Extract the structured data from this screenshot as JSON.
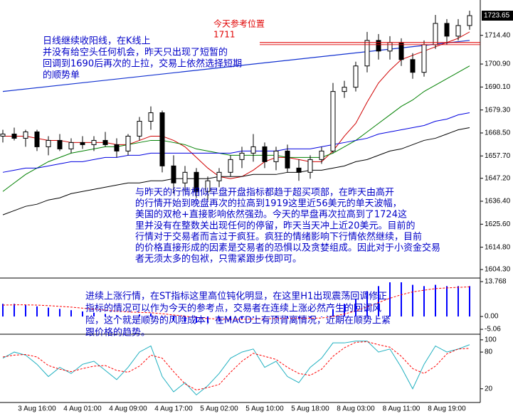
{
  "chart_data": [
    {
      "type": "candlestick",
      "categories": [
        null,
        null,
        null,
        "3 Aug 16:00",
        null,
        null,
        null,
        "4 Aug 01:00",
        null,
        null,
        null,
        "4 Aug 09:00",
        null,
        null,
        null,
        "4 Aug 17:00",
        null,
        null,
        null,
        "5 Aug 02:00",
        null,
        null,
        null,
        "5 Aug 10:00",
        null,
        null,
        null,
        "5 Aug 18:00",
        null,
        null,
        null,
        "8 Aug 03:00",
        null,
        null,
        null,
        "8 Aug 11:00",
        null,
        null,
        null,
        "8 Aug 19:00",
        null,
        null
      ],
      "open": [
        1667,
        1668,
        1666,
        1669,
        1662,
        1665,
        1661,
        1664,
        1663,
        1665,
        1663,
        1660,
        1667,
        1674,
        1678,
        1653,
        1645,
        1650,
        1641,
        1646,
        1650,
        1656,
        1659,
        1662,
        1655,
        1660,
        1652,
        1650,
        1656,
        1660,
        1688,
        1690,
        1700,
        1712,
        1707,
        1711,
        1703,
        1697,
        1710,
        1720,
        1714,
        1719
      ],
      "high": [
        1670,
        1671,
        1670,
        1670,
        1667,
        1668,
        1666,
        1667,
        1667,
        1669,
        1666,
        1668,
        1676,
        1681,
        1679,
        1658,
        1653,
        1652,
        1648,
        1652,
        1658,
        1662,
        1668,
        1664,
        1662,
        1663,
        1656,
        1658,
        1662,
        1692,
        1693,
        1702,
        1716,
        1715,
        1714,
        1713,
        1706,
        1712,
        1724,
        1722,
        1722,
        1726
      ],
      "low": [
        1664,
        1665,
        1662,
        1660,
        1658,
        1660,
        1659,
        1661,
        1660,
        1662,
        1657,
        1658,
        1665,
        1670,
        1650,
        1640,
        1641,
        1638,
        1637,
        1643,
        1648,
        1652,
        1655,
        1652,
        1651,
        1650,
        1646,
        1647,
        1654,
        1659,
        1685,
        1688,
        1697,
        1703,
        1703,
        1700,
        1694,
        1695,
        1708,
        1710,
        1712,
        1717
      ],
      "close": [
        1668,
        1666,
        1669,
        1662,
        1665,
        1661,
        1664,
        1663,
        1665,
        1663,
        1660,
        1667,
        1674,
        1678,
        1653,
        1645,
        1650,
        1641,
        1646,
        1650,
        1656,
        1659,
        1662,
        1655,
        1660,
        1652,
        1650,
        1656,
        1660,
        1688,
        1690,
        1700,
        1712,
        1707,
        1711,
        1703,
        1697,
        1710,
        1720,
        1714,
        1719,
        1723.65
      ],
      "series": [
        {
          "color": "#d00000",
          "values": [
            1667,
            1667,
            1667,
            1666,
            1665,
            1665,
            1664,
            1664,
            1664,
            1664,
            1663,
            1663,
            1665,
            1667,
            1667,
            1665,
            1662,
            1657,
            1652,
            1648,
            1647,
            1648,
            1651,
            1655,
            1657,
            1657,
            1656,
            1655,
            1655,
            1660,
            1667,
            1673,
            1683,
            1692,
            1698,
            1703,
            1705,
            1707,
            1709,
            1711,
            1713,
            1716
          ]
        },
        {
          "color": "#008000",
          "values": [
            1641,
            1645,
            1649,
            1652,
            1655,
            1657,
            1659,
            1660,
            1661,
            1662,
            1662,
            1663,
            1664,
            1665,
            1665,
            1664,
            1663,
            1661,
            1660,
            1659,
            1658,
            1658,
            1658,
            1658,
            1658,
            1657,
            1657,
            1657,
            1657,
            1659,
            1662,
            1665,
            1669,
            1673,
            1677,
            1681,
            1684,
            1688,
            1691,
            1694,
            1697,
            1700
          ]
        },
        {
          "color": "#0000e0",
          "values": [
            1650,
            1651,
            1652,
            1652,
            1653,
            1654,
            1655,
            1655,
            1656,
            1657,
            1657,
            1658,
            1658,
            1659,
            1659,
            1659,
            1659,
            1659,
            1659,
            1659,
            1659,
            1660,
            1660,
            1660,
            1660,
            1661,
            1661,
            1661,
            1662,
            1663,
            1664,
            1665,
            1666,
            1668,
            1669,
            1670,
            1671,
            1672,
            1674,
            1675,
            1677,
            1678
          ]
        },
        {
          "color": "#000000",
          "values": [
            1630,
            1632,
            1634,
            1635,
            1637,
            1638,
            1640,
            1641,
            1642,
            1643,
            1644,
            1645,
            1645,
            1646,
            1646,
            1647,
            1647,
            1647,
            1647,
            1648,
            1648,
            1648,
            1649,
            1649,
            1649,
            1650,
            1650,
            1651,
            1651,
            1652,
            1653,
            1655,
            1656,
            1658,
            1660,
            1661,
            1663,
            1665,
            1666,
            1668,
            1670,
            1671
          ]
        }
      ],
      "trendline": {
        "color": "#1030d0",
        "values": [
          1688,
          1712
        ]
      },
      "reference": {
        "label": "今天参考位置",
        "value": 1711,
        "color": "#e00000"
      },
      "current_price": {
        "value": 1723.65,
        "label": "1723.65"
      },
      "ylim": [
        1600.3,
        1731
      ],
      "yticks": [
        {
          "value": 1714.4,
          "label": "1714.40"
        },
        {
          "value": 1700.9,
          "label": "1700.90"
        },
        {
          "value": 1690.1,
          "label": "1690.10"
        },
        {
          "value": 1679.3,
          "label": "1679.30"
        },
        {
          "value": 1668.5,
          "label": "1668.50"
        },
        {
          "value": 1657.7,
          "label": "1657.70"
        },
        {
          "value": 1647.2,
          "label": "1647.20"
        },
        {
          "value": 1636.4,
          "label": "1636.40"
        },
        {
          "value": 1625.6,
          "label": "1625.60"
        },
        {
          "value": 1614.8,
          "label": "1614.80"
        },
        {
          "value": 1604.3,
          "label": "1604.30"
        }
      ],
      "annotations": [
        [
          "日线继续收阳线，在K线上",
          "并没有给空头任何机会，昨天只出现了短暂的",
          "回调到1690后再次的上拉，交易上依然选择短期",
          "的顺势单"
        ],
        [
          "与昨天的行情相似早盘开盘指标都趋于超买项部，在昨天由高开",
          "的行情开始到晚盘再次的拉高到1919这里近56美元的单天波幅，",
          "美国的双枪+直接影响依然强劲。今天的早盘再次拉高到了1724这",
          "里并没有在整数关出现任何的停留，昨天当天冲上近20美元。目前的",
          "行情对于交易者而言过于疯狂。疯狂的情绪影响下行情依然继续，目前",
          "的价格直接形成的因素是交易者的恐惧以及贪婪组成。因此对于小资金交易",
          "者无须太多的包袱，只需紧跟步伐即可。"
        ]
      ]
    },
    {
      "type": "macd",
      "series": [
        {
          "type": "bar",
          "color": "#0000ff",
          "values": [
            5,
            5,
            4.5,
            4,
            3.5,
            3,
            2.5,
            2,
            1.5,
            1,
            0.5,
            0.3,
            0.8,
            1.2,
            -0.5,
            -1.5,
            -2,
            -2.5,
            -2.5,
            -2,
            -1.5,
            -1,
            -0.5,
            -0.3,
            -0.3,
            -0.5,
            -0.8,
            -0.6,
            -0.2,
            3,
            5,
            7,
            10,
            12,
            13.5,
            13.5,
            12.5,
            12,
            12.5,
            12,
            12,
            12
          ]
        },
        {
          "type": "line",
          "color": "#ff0000",
          "values": [
            4.5,
            4.6,
            4.6,
            4.5,
            4.3,
            4,
            3.7,
            3.3,
            2.9,
            2.5,
            2.1,
            1.8,
            1.6,
            1.5,
            1.1,
            0.6,
            0.1,
            -0.4,
            -0.8,
            -1,
            -1.1,
            -1.1,
            -1,
            -0.9,
            -0.8,
            -0.7,
            -0.7,
            -0.7,
            -0.6,
            0,
            1,
            2.2,
            3.8,
            5.5,
            7.2,
            8.6,
            9.7,
            10.4,
            11,
            11.3,
            11.5,
            11.7
          ]
        }
      ],
      "ylim": [
        -7,
        14.9
      ],
      "yticks": [
        13.768,
        {
          "value": 0,
          "label": "0.00"
        },
        {
          "value": -5.06,
          "label": "-5.06"
        }
      ],
      "annotations": [
        [
          "进续上涨行情，在ST指标这里高位钝化明显，在这里H1出现震荡回调修正",
          "指标的情况可以作为今天的参考点，交易者在连续上涨必然产生的回调风",
          "险，这个就是顺势的风险成本，在MACD上有顶背离情况，近期在顺势上紧",
          "跟价格的趋势。"
        ]
      ]
    },
    {
      "type": "line",
      "series": [
        {
          "color": "#20b0c0",
          "values": [
            70,
            80,
            75,
            60,
            40,
            55,
            45,
            60,
            65,
            50,
            35,
            55,
            80,
            90,
            40,
            15,
            30,
            10,
            25,
            45,
            70,
            80,
            85,
            55,
            65,
            40,
            30,
            55,
            70,
            95,
            95,
            98,
            98,
            80,
            85,
            55,
            20,
            60,
            90,
            80,
            85,
            92
          ]
        },
        {
          "color": "#ff0000",
          "dash": true,
          "values": [
            72,
            75,
            76,
            72,
            58,
            52,
            48,
            53,
            57,
            58,
            50,
            47,
            57,
            75,
            70,
            48,
            28,
            18,
            22,
            27,
            47,
            65,
            78,
            73,
            68,
            55,
            45,
            42,
            52,
            73,
            87,
            96,
            97,
            92,
            88,
            73,
            53,
            45,
            57,
            77,
            85,
            86
          ]
        }
      ],
      "ylim": [
        -2.4,
        108
      ],
      "yticks": [
        100,
        80,
        20
      ]
    }
  ]
}
